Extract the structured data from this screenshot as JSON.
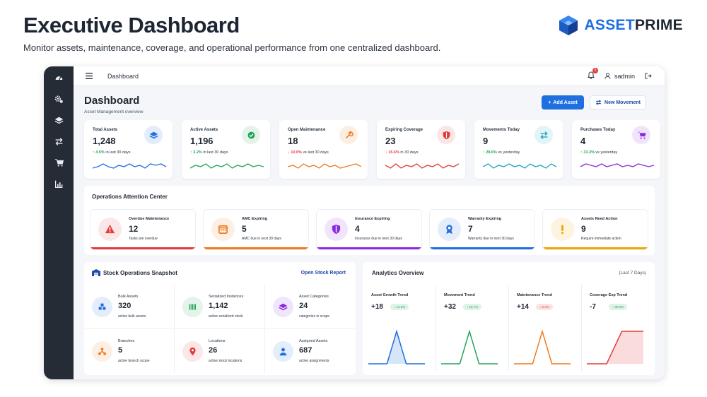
{
  "hero": {
    "title": "Executive Dashboard",
    "subtitle": "Monitor assets, maintenance, coverage, and operational performance from one centralized dashboard.",
    "brand_part1": "ASSET",
    "brand_part2": "PRIME"
  },
  "topbar": {
    "breadcrumb": "Dashboard",
    "notification_count": "5",
    "user": "sadmin"
  },
  "page": {
    "title": "Dashboard",
    "subtitle": "Asset Management overview",
    "add_label": "Add Asset",
    "move_label": "New Movement"
  },
  "sidebar": {
    "icons": [
      "dashboard-icon",
      "cog-icon",
      "layers-icon",
      "transfer-icon",
      "cart-icon",
      "chart-icon"
    ]
  },
  "kpis": [
    {
      "label": "Total Assets",
      "value": "1,248",
      "change": "4.5%",
      "period": "in last 30 days",
      "direction": "up",
      "color": "#1f6fe0",
      "icon": "layers-icon"
    },
    {
      "label": "Active Assets",
      "value": "1,196",
      "change": "3.2%",
      "period": "in last 30 days",
      "direction": "up",
      "color": "#22a559",
      "icon": "check-circle-icon"
    },
    {
      "label": "Open Maintenance",
      "value": "18",
      "change": "10.0%",
      "period": "vs last 30 days",
      "direction": "down",
      "color": "#ef7a1f",
      "icon": "wrench-icon"
    },
    {
      "label": "Expiring Coverage",
      "value": "23",
      "change": "15.6%",
      "period": "in 30 days",
      "direction": "down",
      "color": "#e23b3b",
      "icon": "shield-icon"
    },
    {
      "label": "Movements Today",
      "value": "9",
      "change": "28.6%",
      "period": "vs yesterday",
      "direction": "up",
      "color": "#1aa7b8",
      "icon": "transfer-icon"
    },
    {
      "label": "Purchases Today",
      "value": "4",
      "change": "33.3%",
      "period": "vs yesterday",
      "direction": "up",
      "color": "#8a2be2",
      "icon": "cart-icon"
    }
  ],
  "ops": {
    "title": "Operations Attention Center",
    "cards": [
      {
        "title": "Overdue Maintenance",
        "value": "12",
        "sub": "Tasks are overdue",
        "color": "#e23b3b",
        "icon": "warning-icon"
      },
      {
        "title": "AMC Expiring",
        "value": "5",
        "sub": "AMC due in next 30 days",
        "color": "#ef7a1f",
        "icon": "calendar-icon"
      },
      {
        "title": "Insurance Expiring",
        "value": "4",
        "sub": "Insurance due in next 30 days",
        "color": "#8a2be2",
        "icon": "shield-icon"
      },
      {
        "title": "Warranty Expiring",
        "value": "7",
        "sub": "Warranty due in next 30 days",
        "color": "#1f6fe0",
        "icon": "badge-icon"
      },
      {
        "title": "Assets Need Action",
        "value": "9",
        "sub": "Require immediate action",
        "color": "#f0a500",
        "icon": "exclamation-icon"
      }
    ]
  },
  "stock": {
    "title": "Stock Operations Snapshot",
    "link": "Open Stock Report",
    "cards": [
      {
        "title": "Bulk Assets",
        "value": "320",
        "sub": "active bulk assets",
        "color": "#1f6fe0",
        "icon": "boxes-icon"
      },
      {
        "title": "Serialized Instances",
        "value": "1,142",
        "sub": "active serialized stock",
        "color": "#22a559",
        "icon": "barcode-icon"
      },
      {
        "title": "Asset Categories",
        "value": "24",
        "sub": "categories in scope",
        "color": "#8a2be2",
        "icon": "layers-icon"
      },
      {
        "title": "Branches",
        "value": "5",
        "sub": "active branch scope",
        "color": "#ef7a1f",
        "icon": "branches-icon"
      },
      {
        "title": "Locations",
        "value": "26",
        "sub": "active stock locations",
        "color": "#e23b3b",
        "icon": "pin-icon"
      },
      {
        "title": "Assigned Assets",
        "value": "687",
        "sub": "active assignments",
        "color": "#1f6fe0",
        "icon": "user-icon"
      }
    ]
  },
  "analytics": {
    "title": "Analytics Overview",
    "period": "(Last 7 Days)",
    "cards": [
      {
        "title": "Asset Growth Trend",
        "value": "+18",
        "change": "12.5%",
        "direction": "up",
        "color": "#1f6fe0",
        "shape": "peak",
        "fill": true
      },
      {
        "title": "Movement Trend",
        "value": "+32",
        "change": "18.7%",
        "direction": "up",
        "color": "#22a559",
        "shape": "peak",
        "fill": false
      },
      {
        "title": "Maintenance Trend",
        "value": "+14",
        "change": "6.3%",
        "direction": "down",
        "color": "#ef7a1f",
        "shape": "peak",
        "fill": false
      },
      {
        "title": "Coverage Exp Trend",
        "value": "-7",
        "change": "30.0%",
        "direction": "up",
        "color": "#e23b3b",
        "shape": "rise",
        "fill": true
      }
    ]
  }
}
